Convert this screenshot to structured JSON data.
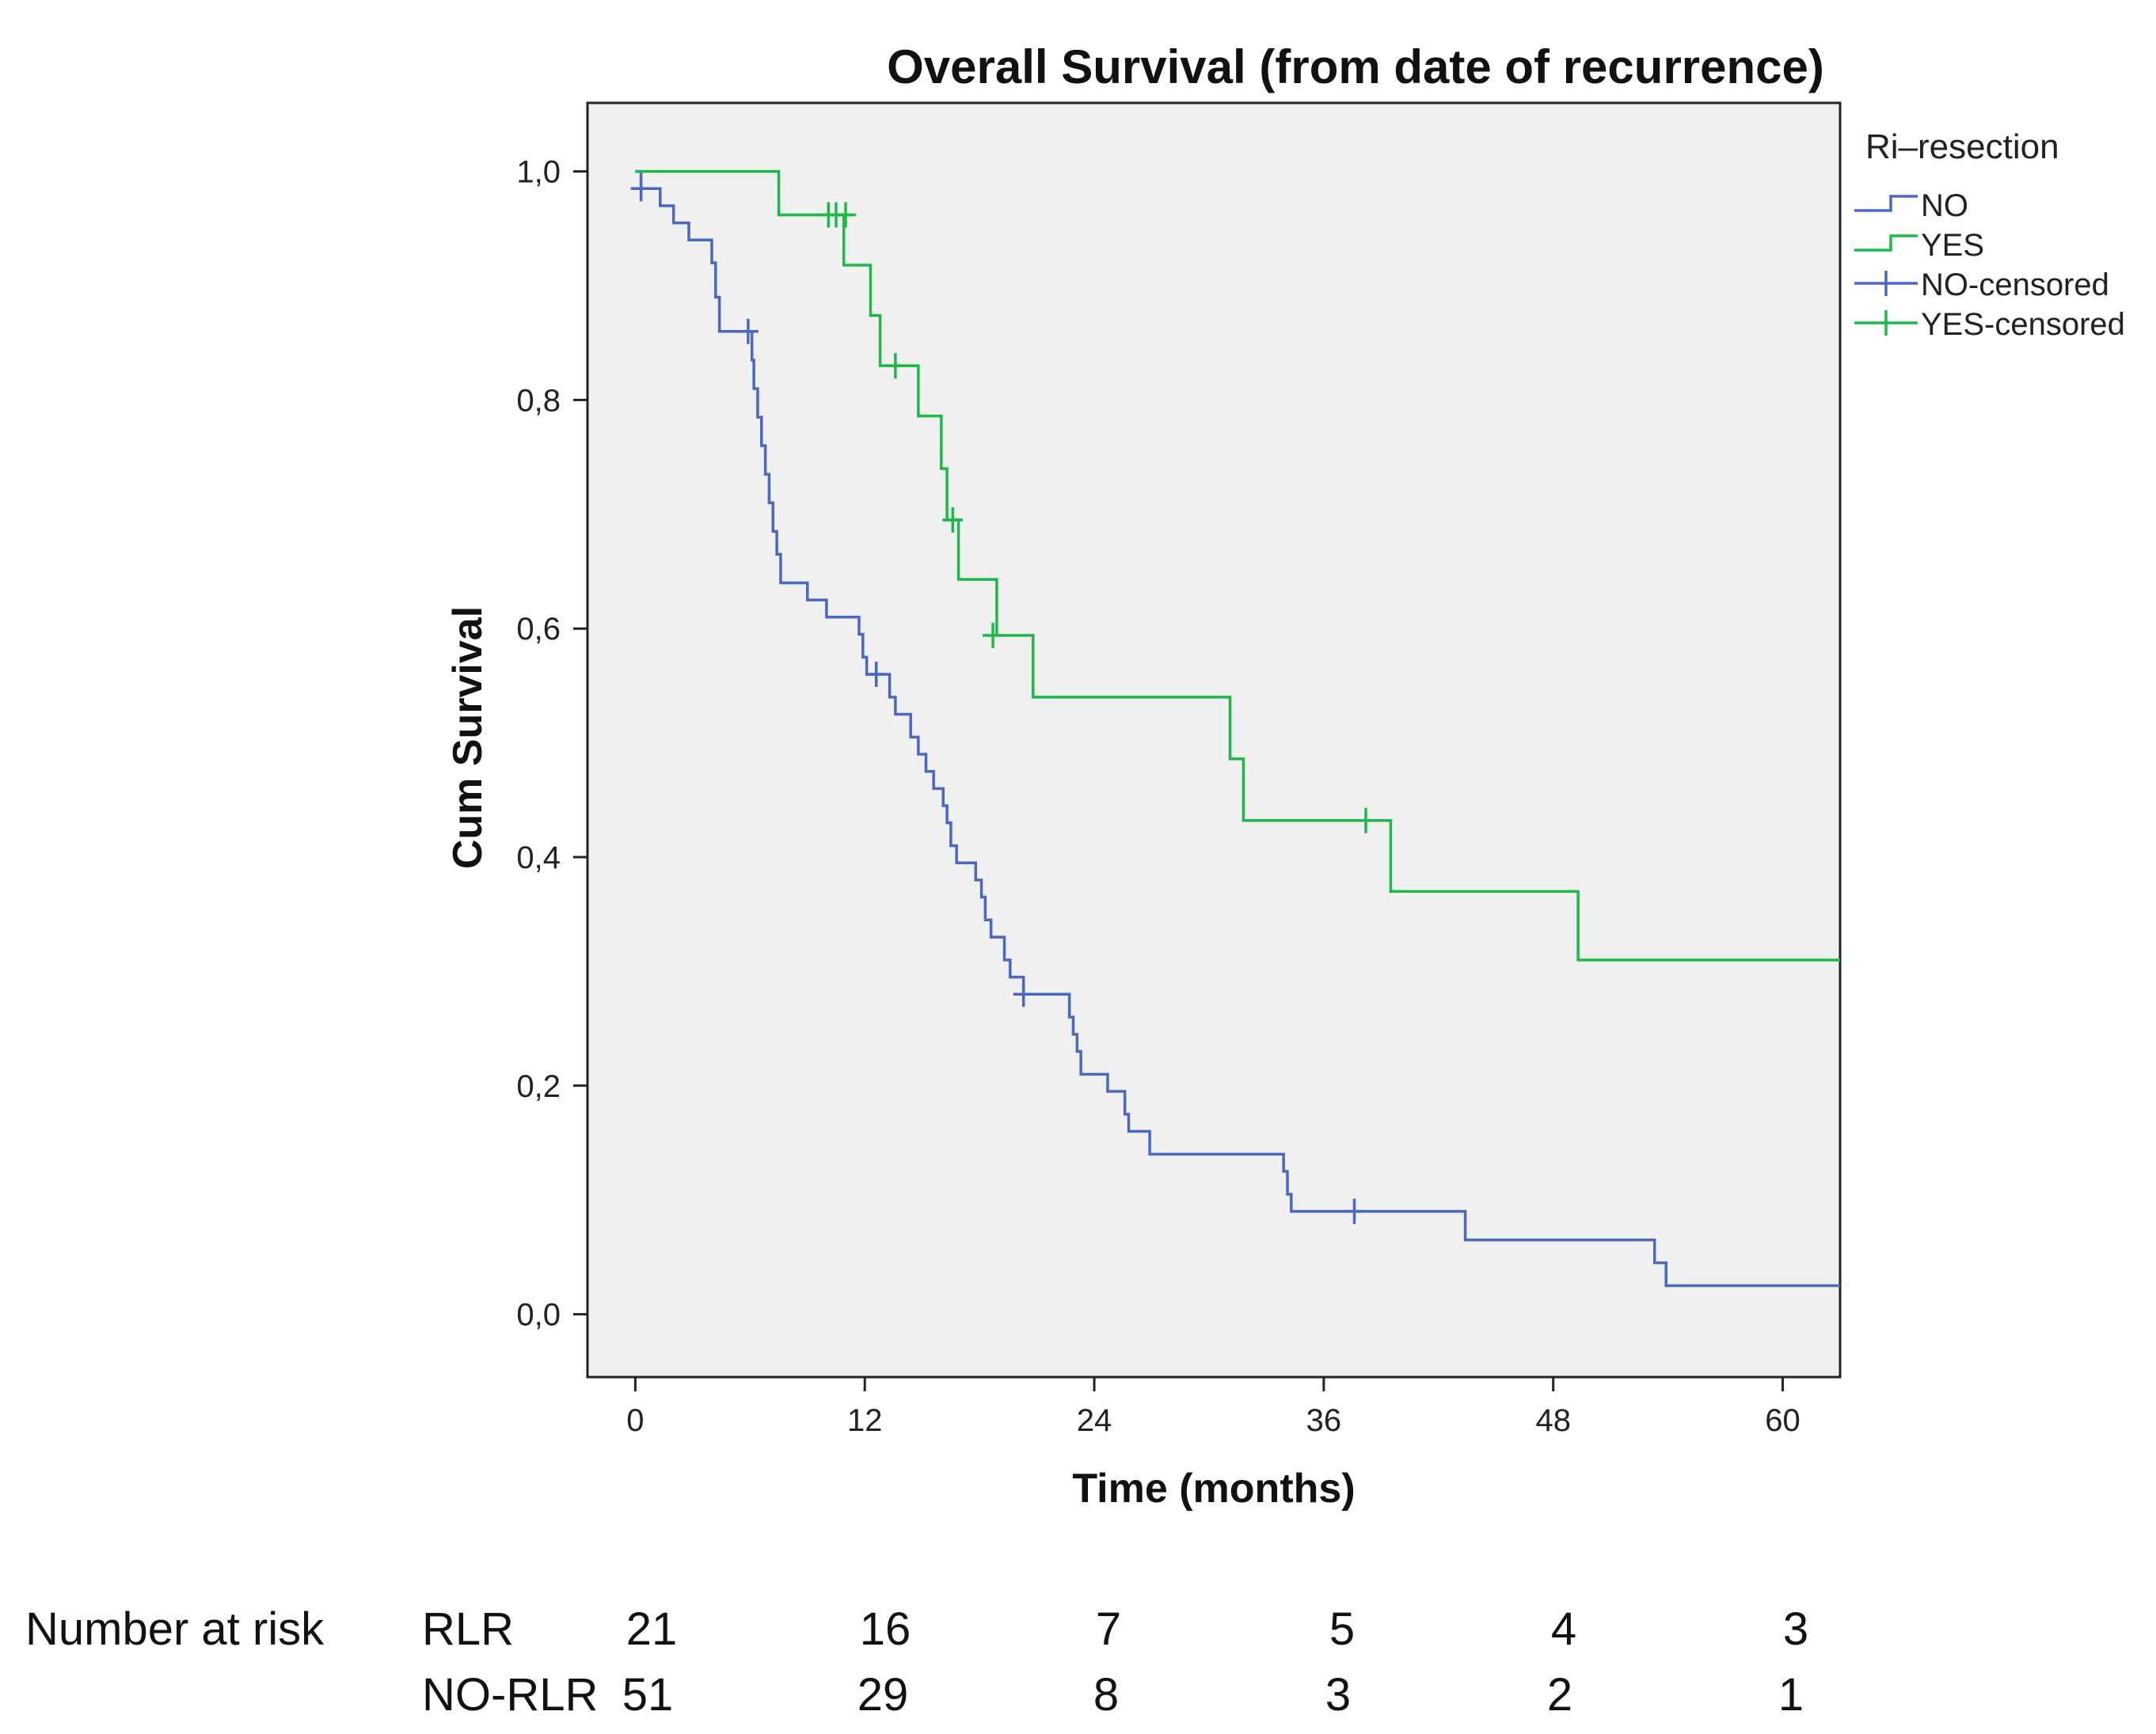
{
  "chart_data": {
    "type": "line",
    "subtype": "kaplan-meier step",
    "title": "Overall Survival (from date of recurrence)",
    "xlabel": "Time (months)",
    "ylabel": "Cum Survival",
    "xlim": [
      -2.5,
      63
    ],
    "ylim": [
      -0.055,
      1.06
    ],
    "xticks": [
      0,
      12,
      24,
      36,
      48,
      60
    ],
    "xtick_labels": [
      "0",
      "12",
      "24",
      "36",
      "48",
      "60"
    ],
    "yticks": [
      0,
      0.2,
      0.4,
      0.6,
      0.8,
      1.0
    ],
    "ytick_labels": [
      "0,0",
      "0,2",
      "0,4",
      "0,6",
      "0,8",
      "1,0"
    ],
    "legend_title": "Ri–resection",
    "legend": [
      "NO",
      "YES",
      "NO-censored",
      "YES-censored"
    ],
    "legend_position": "right",
    "colors": {
      "NO": "#4a67c4",
      "YES": "#1db84a",
      "background": "#f0f0f0"
    },
    "series": [
      {
        "name": "NO",
        "color": "#4a67c4",
        "steps": [
          [
            0,
            1.0
          ],
          [
            0.3,
            0.985
          ],
          [
            1.3,
            0.97
          ],
          [
            2.0,
            0.955
          ],
          [
            2.8,
            0.94
          ],
          [
            4.0,
            0.92
          ],
          [
            4.2,
            0.89
          ],
          [
            4.4,
            0.86
          ],
          [
            5.8,
            0.86
          ],
          [
            6.1,
            0.835
          ],
          [
            6.2,
            0.81
          ],
          [
            6.4,
            0.785
          ],
          [
            6.6,
            0.76
          ],
          [
            6.8,
            0.735
          ],
          [
            7.0,
            0.71
          ],
          [
            7.2,
            0.685
          ],
          [
            7.4,
            0.665
          ],
          [
            7.6,
            0.64
          ],
          [
            9.0,
            0.625
          ],
          [
            10.0,
            0.61
          ],
          [
            11.7,
            0.595
          ],
          [
            11.9,
            0.575
          ],
          [
            12.1,
            0.56
          ],
          [
            13.3,
            0.54
          ],
          [
            13.6,
            0.525
          ],
          [
            14.4,
            0.505
          ],
          [
            14.8,
            0.49
          ],
          [
            15.2,
            0.475
          ],
          [
            15.6,
            0.46
          ],
          [
            16.1,
            0.445
          ],
          [
            16.3,
            0.43
          ],
          [
            16.5,
            0.41
          ],
          [
            16.8,
            0.395
          ],
          [
            17.8,
            0.38
          ],
          [
            18.1,
            0.365
          ],
          [
            18.3,
            0.345
          ],
          [
            18.6,
            0.33
          ],
          [
            19.3,
            0.31
          ],
          [
            19.6,
            0.295
          ],
          [
            20.3,
            0.28
          ],
          [
            22.7,
            0.26
          ],
          [
            22.9,
            0.245
          ],
          [
            23.1,
            0.23
          ],
          [
            23.3,
            0.21
          ],
          [
            24.7,
            0.195
          ],
          [
            25.6,
            0.175
          ],
          [
            25.8,
            0.16
          ],
          [
            26.9,
            0.14
          ],
          [
            33.9,
            0.125
          ],
          [
            34.1,
            0.105
          ],
          [
            34.3,
            0.09
          ],
          [
            43.4,
            0.065
          ],
          [
            53.3,
            0.045
          ],
          [
            53.9,
            0.025
          ],
          [
            63,
            0.025
          ]
        ],
        "censored": [
          [
            0.3,
            0.985
          ],
          [
            5.9,
            0.86
          ],
          [
            12.6,
            0.56
          ],
          [
            20.3,
            0.28
          ],
          [
            37.6,
            0.09
          ]
        ]
      },
      {
        "name": "YES",
        "color": "#1db84a",
        "steps": [
          [
            0,
            1.0
          ],
          [
            7.5,
            0.962
          ],
          [
            10.9,
            0.918
          ],
          [
            12.3,
            0.874
          ],
          [
            12.8,
            0.83
          ],
          [
            14.8,
            0.786
          ],
          [
            16.0,
            0.74
          ],
          [
            16.3,
            0.695
          ],
          [
            16.9,
            0.643
          ],
          [
            18.9,
            0.594
          ],
          [
            20.8,
            0.54
          ],
          [
            31.1,
            0.486
          ],
          [
            31.8,
            0.432
          ],
          [
            39.5,
            0.37
          ],
          [
            49.3,
            0.31
          ],
          [
            63,
            0.31
          ]
        ],
        "censored": [
          [
            10.1,
            0.962
          ],
          [
            10.5,
            0.962
          ],
          [
            11.0,
            0.962
          ],
          [
            13.6,
            0.83
          ],
          [
            16.6,
            0.695
          ],
          [
            18.7,
            0.594
          ],
          [
            38.2,
            0.432
          ]
        ]
      }
    ]
  },
  "risk_table": {
    "label": "Number at risk",
    "rows": [
      {
        "name": "RLR",
        "values": [
          "21",
          "16",
          "7",
          "5",
          "4",
          "3"
        ]
      },
      {
        "name": "NO-RLR",
        "values": [
          "51",
          "29",
          "8",
          "3",
          "2",
          "1"
        ]
      }
    ]
  }
}
